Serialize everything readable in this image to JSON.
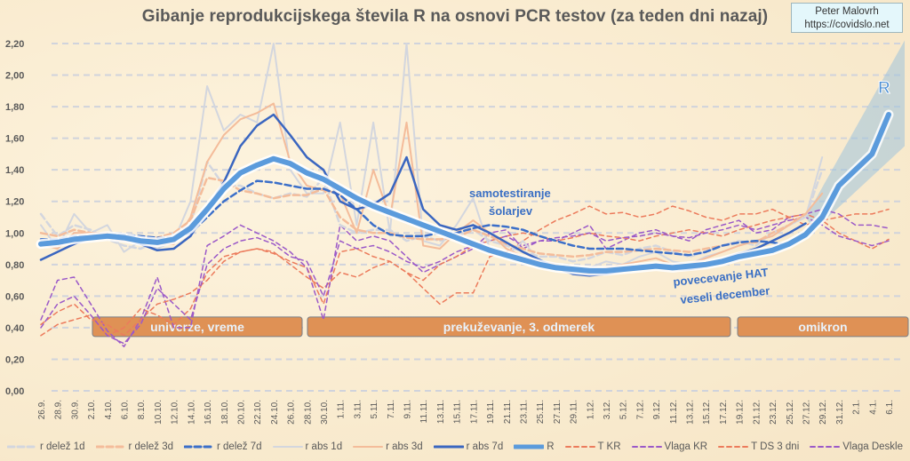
{
  "chart_data": {
    "type": "line",
    "title": "Gibanje reprodukcijskega števila R na osnovi PCR testov (za teden dni nazaj)",
    "credit": {
      "author": "Peter Malovrh",
      "url": "https://covidslo.net"
    },
    "xlabel": "",
    "ylabel": "",
    "ylim": [
      0,
      2.2
    ],
    "yticks": [
      "0,00",
      "0,20",
      "0,40",
      "0,60",
      "0,80",
      "1,00",
      "1,20",
      "1,40",
      "1,60",
      "1,80",
      "2,00",
      "2,20"
    ],
    "ytick_values": [
      0,
      0.2,
      0.4,
      0.6,
      0.8,
      1.0,
      1.2,
      1.4,
      1.6,
      1.8,
      2.0,
      2.2
    ],
    "grid": true,
    "legend_position": "bottom",
    "x": [
      "26.9.",
      "28.9.",
      "30.9.",
      "2.10.",
      "4.10.",
      "6.10.",
      "8.10.",
      "10.10.",
      "12.10.",
      "14.10.",
      "16.10.",
      "18.10.",
      "20.10.",
      "22.10.",
      "24.10.",
      "26.10.",
      "28.10.",
      "30.10.",
      "1.11.",
      "3.11.",
      "5.11.",
      "7.11.",
      "9.11.",
      "11.11.",
      "13.11.",
      "15.11.",
      "17.11.",
      "19.11.",
      "21.11.",
      "23.11.",
      "25.11.",
      "27.11.",
      "29.11.",
      "1.12.",
      "3.12.",
      "5.12.",
      "7.12.",
      "9.12.",
      "11.12.",
      "13.12.",
      "15.12.",
      "17.12.",
      "19.12.",
      "21.12.",
      "23.12.",
      "25.12.",
      "27.12.",
      "29.12.",
      "31.12.",
      "2.1.",
      "4.1.",
      "6.1."
    ],
    "series": [
      {
        "name": "r delež 1d",
        "color": "#d3d6de",
        "style": "dashed",
        "width": 2.5,
        "values": [
          1.12,
          0.98,
          1.05,
          1.02,
          0.96,
          0.92,
          0.9,
          0.95,
          0.98,
          1.05,
          1.45,
          1.3,
          1.3,
          1.25,
          1.22,
          1.25,
          1.23,
          1.35,
          1.05,
          1.0,
          1.02,
          1.02,
          0.95,
          0.98,
          0.95,
          0.98,
          1.02,
          0.95,
          0.92,
          0.88,
          0.85,
          0.85,
          0.82,
          0.84,
          0.88,
          0.86,
          0.9,
          0.92,
          0.88,
          0.85,
          0.88,
          0.92,
          0.95,
          0.92,
          1.0,
          1.05,
          1.1,
          1.4,
          null,
          null,
          null,
          null
        ]
      },
      {
        "name": "r delež 3d",
        "color": "#f4bc9a",
        "style": "dashed",
        "width": 2.5,
        "values": [
          1.0,
          0.98,
          1.02,
          1.0,
          0.97,
          0.95,
          0.95,
          0.97,
          1.0,
          1.08,
          1.35,
          1.33,
          1.27,
          1.25,
          1.22,
          1.24,
          1.24,
          1.28,
          1.1,
          1.02,
          1.0,
          1.0,
          0.97,
          0.96,
          0.96,
          0.97,
          1.02,
          0.98,
          0.93,
          0.9,
          0.87,
          0.86,
          0.85,
          0.86,
          0.88,
          0.88,
          0.89,
          0.9,
          0.89,
          0.88,
          0.9,
          0.92,
          0.94,
          0.94,
          1.0,
          1.05,
          1.12,
          null,
          null,
          null,
          null,
          null
        ]
      },
      {
        "name": "r delež 7d",
        "color": "#3b6fc9",
        "style": "dashed",
        "width": 2.5,
        "values": [
          0.96,
          0.96,
          0.98,
          0.98,
          0.99,
          0.99,
          0.98,
          0.97,
          0.97,
          1.0,
          1.1,
          1.2,
          1.27,
          1.33,
          1.32,
          1.3,
          1.28,
          1.28,
          1.24,
          1.15,
          1.05,
          0.99,
          0.98,
          0.98,
          1.0,
          1.0,
          1.03,
          1.05,
          1.04,
          1.02,
          0.98,
          0.95,
          0.92,
          0.9,
          0.9,
          0.9,
          0.89,
          0.88,
          0.87,
          0.86,
          0.88,
          0.92,
          0.94,
          0.95,
          0.94,
          0.92,
          null,
          null,
          null,
          null,
          null,
          null
        ]
      },
      {
        "name": "r abs 1d",
        "color": "#d3d6de",
        "style": "solid",
        "width": 2,
        "values": [
          1.05,
          0.9,
          1.12,
          1.0,
          1.05,
          0.88,
          0.95,
          0.9,
          0.95,
          1.2,
          1.93,
          1.65,
          1.75,
          1.7,
          2.2,
          1.4,
          1.25,
          1.25,
          1.7,
          1.05,
          1.7,
          1.0,
          2.2,
          0.95,
          0.92,
          1.05,
          1.22,
          0.9,
          0.85,
          0.95,
          0.82,
          0.8,
          0.75,
          0.78,
          0.82,
          0.8,
          0.85,
          0.88,
          0.82,
          0.8,
          0.85,
          0.88,
          0.92,
          0.95,
          0.98,
          1.05,
          1.1,
          1.48,
          null,
          null,
          null,
          null
        ]
      },
      {
        "name": "r abs 3d",
        "color": "#f4bc9a",
        "style": "solid",
        "width": 2,
        "values": [
          0.93,
          0.9,
          1.0,
          1.0,
          1.0,
          0.95,
          0.95,
          0.93,
          0.93,
          1.1,
          1.45,
          1.62,
          1.72,
          1.76,
          1.82,
          1.45,
          1.3,
          1.27,
          1.25,
          1.0,
          1.4,
          1.1,
          1.7,
          0.92,
          0.9,
          1.0,
          1.08,
          1.0,
          0.9,
          0.85,
          0.82,
          0.8,
          0.74,
          0.74,
          0.78,
          0.8,
          0.82,
          0.84,
          0.8,
          0.8,
          0.84,
          0.88,
          0.92,
          0.95,
          0.98,
          1.05,
          1.12,
          1.25,
          null,
          null,
          null,
          null
        ]
      },
      {
        "name": "r abs 7d",
        "color": "#3a66c0",
        "style": "solid",
        "width": 2.5,
        "values": [
          0.83,
          0.88,
          0.93,
          0.97,
          0.99,
          0.97,
          0.93,
          0.89,
          0.9,
          0.98,
          1.15,
          1.32,
          1.55,
          1.68,
          1.75,
          1.62,
          1.48,
          1.4,
          1.2,
          1.15,
          1.18,
          1.25,
          1.48,
          1.15,
          1.05,
          1.02,
          1.05,
          1.0,
          0.94,
          0.88,
          0.83,
          0.78,
          0.74,
          0.73,
          0.74,
          0.76,
          0.78,
          0.79,
          0.77,
          0.77,
          0.79,
          0.83,
          0.87,
          0.9,
          0.95,
          1.0,
          1.06,
          null,
          null,
          null,
          null,
          null
        ]
      },
      {
        "name": "R",
        "color": "#5b9bdc",
        "style": "solid",
        "width": 6,
        "values": [
          0.93,
          0.94,
          0.96,
          0.97,
          0.98,
          0.97,
          0.95,
          0.94,
          0.96,
          1.03,
          1.15,
          1.28,
          1.38,
          1.43,
          1.47,
          1.44,
          1.38,
          1.34,
          1.28,
          1.22,
          1.17,
          1.13,
          1.09,
          1.05,
          1.01,
          0.97,
          0.93,
          0.89,
          0.86,
          0.83,
          0.8,
          0.78,
          0.77,
          0.76,
          0.76,
          0.77,
          0.78,
          0.79,
          0.78,
          0.79,
          0.8,
          0.82,
          0.85,
          0.87,
          0.89,
          0.93,
          0.99,
          1.1,
          1.3,
          1.4,
          1.5,
          1.75
        ]
      },
      {
        "name": "T KR",
        "color": "#ec7b5c",
        "style": "dashed",
        "width": 1.5,
        "values": [
          0.35,
          0.42,
          0.45,
          0.48,
          0.35,
          0.4,
          0.52,
          0.48,
          0.42,
          0.52,
          0.75,
          0.85,
          0.88,
          0.9,
          0.87,
          0.82,
          0.78,
          0.55,
          0.88,
          0.9,
          0.85,
          0.82,
          0.75,
          0.65,
          0.55,
          0.62,
          0.62,
          0.85,
          0.88,
          0.95,
          1.02,
          1.08,
          1.12,
          1.17,
          1.12,
          1.13,
          1.1,
          1.12,
          1.17,
          1.14,
          1.1,
          1.08,
          1.12,
          1.12,
          1.15,
          1.1,
          1.05,
          1.08,
          1.1,
          1.12,
          1.12,
          1.15
        ]
      },
      {
        "name": "Vlaga KR",
        "color": "#9b59c8",
        "style": "dashed",
        "width": 1.5,
        "values": [
          0.45,
          0.7,
          0.72,
          0.55,
          0.38,
          0.28,
          0.45,
          0.72,
          0.4,
          0.4,
          0.92,
          0.98,
          1.05,
          1.0,
          0.95,
          0.88,
          0.78,
          0.45,
          1.05,
          0.95,
          0.98,
          0.95,
          0.85,
          0.75,
          0.8,
          0.85,
          0.9,
          1.0,
          1.02,
          0.9,
          0.95,
          0.95,
          1.0,
          1.05,
          0.9,
          0.95,
          1.0,
          1.02,
          0.98,
          0.95,
          1.02,
          1.05,
          1.08,
          1.0,
          1.02,
          1.1,
          1.12,
          1.15,
          1.12,
          1.05,
          1.05,
          1.03
        ]
      },
      {
        "name": "T DS 3 dni",
        "color": "#ec7b5c",
        "style": "dashed",
        "width": 1.5,
        "values": [
          0.42,
          0.5,
          0.55,
          0.45,
          0.42,
          0.35,
          0.45,
          0.55,
          0.58,
          0.62,
          0.7,
          0.82,
          0.88,
          0.9,
          0.88,
          0.8,
          0.72,
          0.65,
          0.75,
          0.72,
          0.78,
          0.82,
          0.75,
          0.7,
          0.8,
          0.85,
          0.92,
          0.95,
          0.98,
          1.0,
          0.98,
          0.95,
          0.97,
          1.0,
          0.98,
          0.97,
          0.95,
          0.98,
          1.0,
          1.02,
          1.0,
          0.98,
          1.02,
          1.05,
          1.08,
          1.1,
          1.12,
          1.08,
          1.0,
          0.95,
          0.9,
          0.96
        ]
      },
      {
        "name": "Vlaga Deskle",
        "color": "#9b59c8",
        "style": "dashed",
        "width": 1.5,
        "values": [
          0.4,
          0.55,
          0.6,
          0.48,
          0.35,
          0.3,
          0.42,
          0.65,
          0.55,
          0.45,
          0.8,
          0.9,
          0.95,
          0.97,
          0.93,
          0.85,
          0.82,
          0.6,
          0.95,
          0.9,
          0.92,
          0.88,
          0.82,
          0.78,
          0.82,
          0.88,
          0.92,
          0.95,
          0.98,
          0.92,
          0.95,
          0.97,
          0.98,
          1.0,
          0.95,
          0.97,
          0.98,
          1.0,
          0.98,
          0.97,
          1.0,
          1.02,
          1.05,
          1.02,
          1.05,
          1.08,
          1.1,
          1.05,
          0.98,
          0.95,
          0.92,
          0.95
        ]
      }
    ],
    "projection": {
      "label": "R",
      "from": "2.1.",
      "to": "6.1.",
      "range_high": 2.22,
      "range_low": 1.55,
      "color": "#9fc2dd"
    },
    "bands": [
      {
        "label": "univerze, vreme",
        "from": "4.10.",
        "to": "29.10.",
        "y": 0.4
      },
      {
        "label": "prekuževanje, 3. odmerek",
        "from": "30.10.",
        "to": "19.12.",
        "y": 0.4
      },
      {
        "label": "omikron",
        "from": "20.12.",
        "to": "7.1.",
        "y": 0.4
      }
    ],
    "annotations": [
      {
        "text": "samotestiranje",
        "near": "19.11.",
        "y": 1.17
      },
      {
        "text": "šolarjev",
        "near": "19.11.",
        "y": 1.08
      },
      {
        "text": "povecevanje HAT",
        "near": "15.12.",
        "y": 0.7
      },
      {
        "text": "veseli december",
        "near": "15.12.",
        "y": 0.6
      }
    ]
  }
}
